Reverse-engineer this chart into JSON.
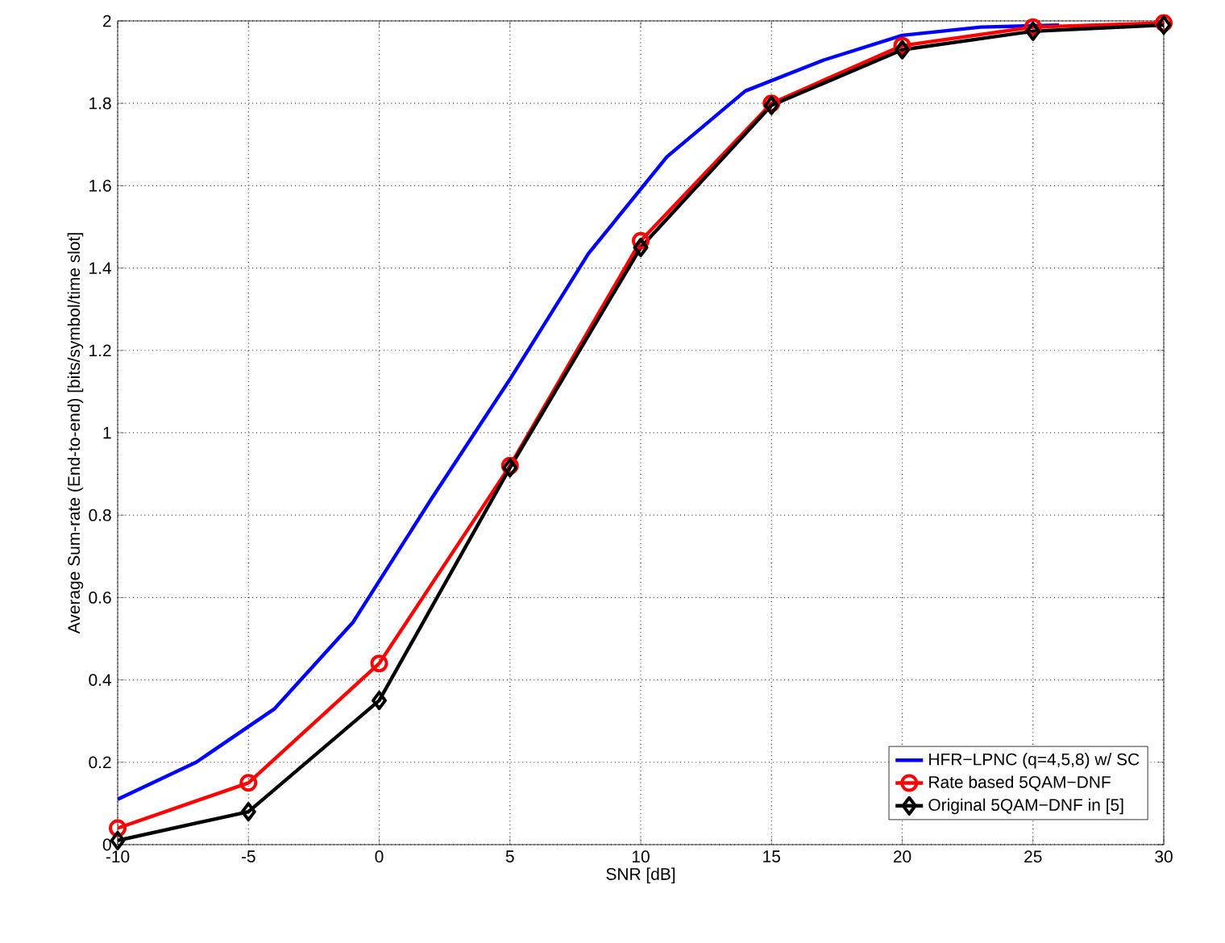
{
  "chart_data": {
    "type": "line",
    "xlabel": "SNR [dB]",
    "ylabel": "Average Sum-rate (End-to-end) [bits/symbol/time slot]",
    "xlim": [
      -10,
      30
    ],
    "xticks": [
      -10,
      -5,
      0,
      5,
      10,
      15,
      20,
      25,
      30
    ],
    "ylim": [
      0,
      2
    ],
    "yticks": [
      0,
      0.2,
      0.4,
      0.6,
      0.8,
      1,
      1.2,
      1.4,
      1.6,
      1.8,
      2
    ],
    "grid": true,
    "legend": "bottom right",
    "line_style": "solid",
    "series": [
      {
        "name": "HFR−LPNC (q=4,5,8) w/ SC",
        "color": "#0000ff",
        "marker": "none",
        "x": [
          -10,
          -7,
          -4,
          -1,
          2,
          5,
          8,
          11,
          14,
          17,
          20,
          23,
          26
        ],
        "values": [
          0.11,
          0.2,
          0.33,
          0.54,
          0.84,
          1.13,
          1.435,
          1.67,
          1.83,
          1.905,
          1.965,
          1.985,
          1.99
        ]
      },
      {
        "name": "Rate based 5QAM−DNF",
        "color": "#ff0000",
        "marker": "circle",
        "x": [
          -10,
          -5,
          0,
          5,
          10,
          15,
          20,
          25,
          30
        ],
        "values": [
          0.04,
          0.15,
          0.44,
          0.92,
          1.466,
          1.8,
          1.94,
          1.985,
          1.995
        ]
      },
      {
        "name": "Original 5QAM−DNF in [5]",
        "color": "#000000",
        "marker": "diamond",
        "x": [
          -10,
          -5,
          0,
          5,
          10,
          15,
          20,
          25,
          30
        ],
        "values": [
          0.01,
          0.08,
          0.35,
          0.915,
          1.45,
          1.795,
          1.93,
          1.975,
          1.99
        ]
      }
    ]
  }
}
